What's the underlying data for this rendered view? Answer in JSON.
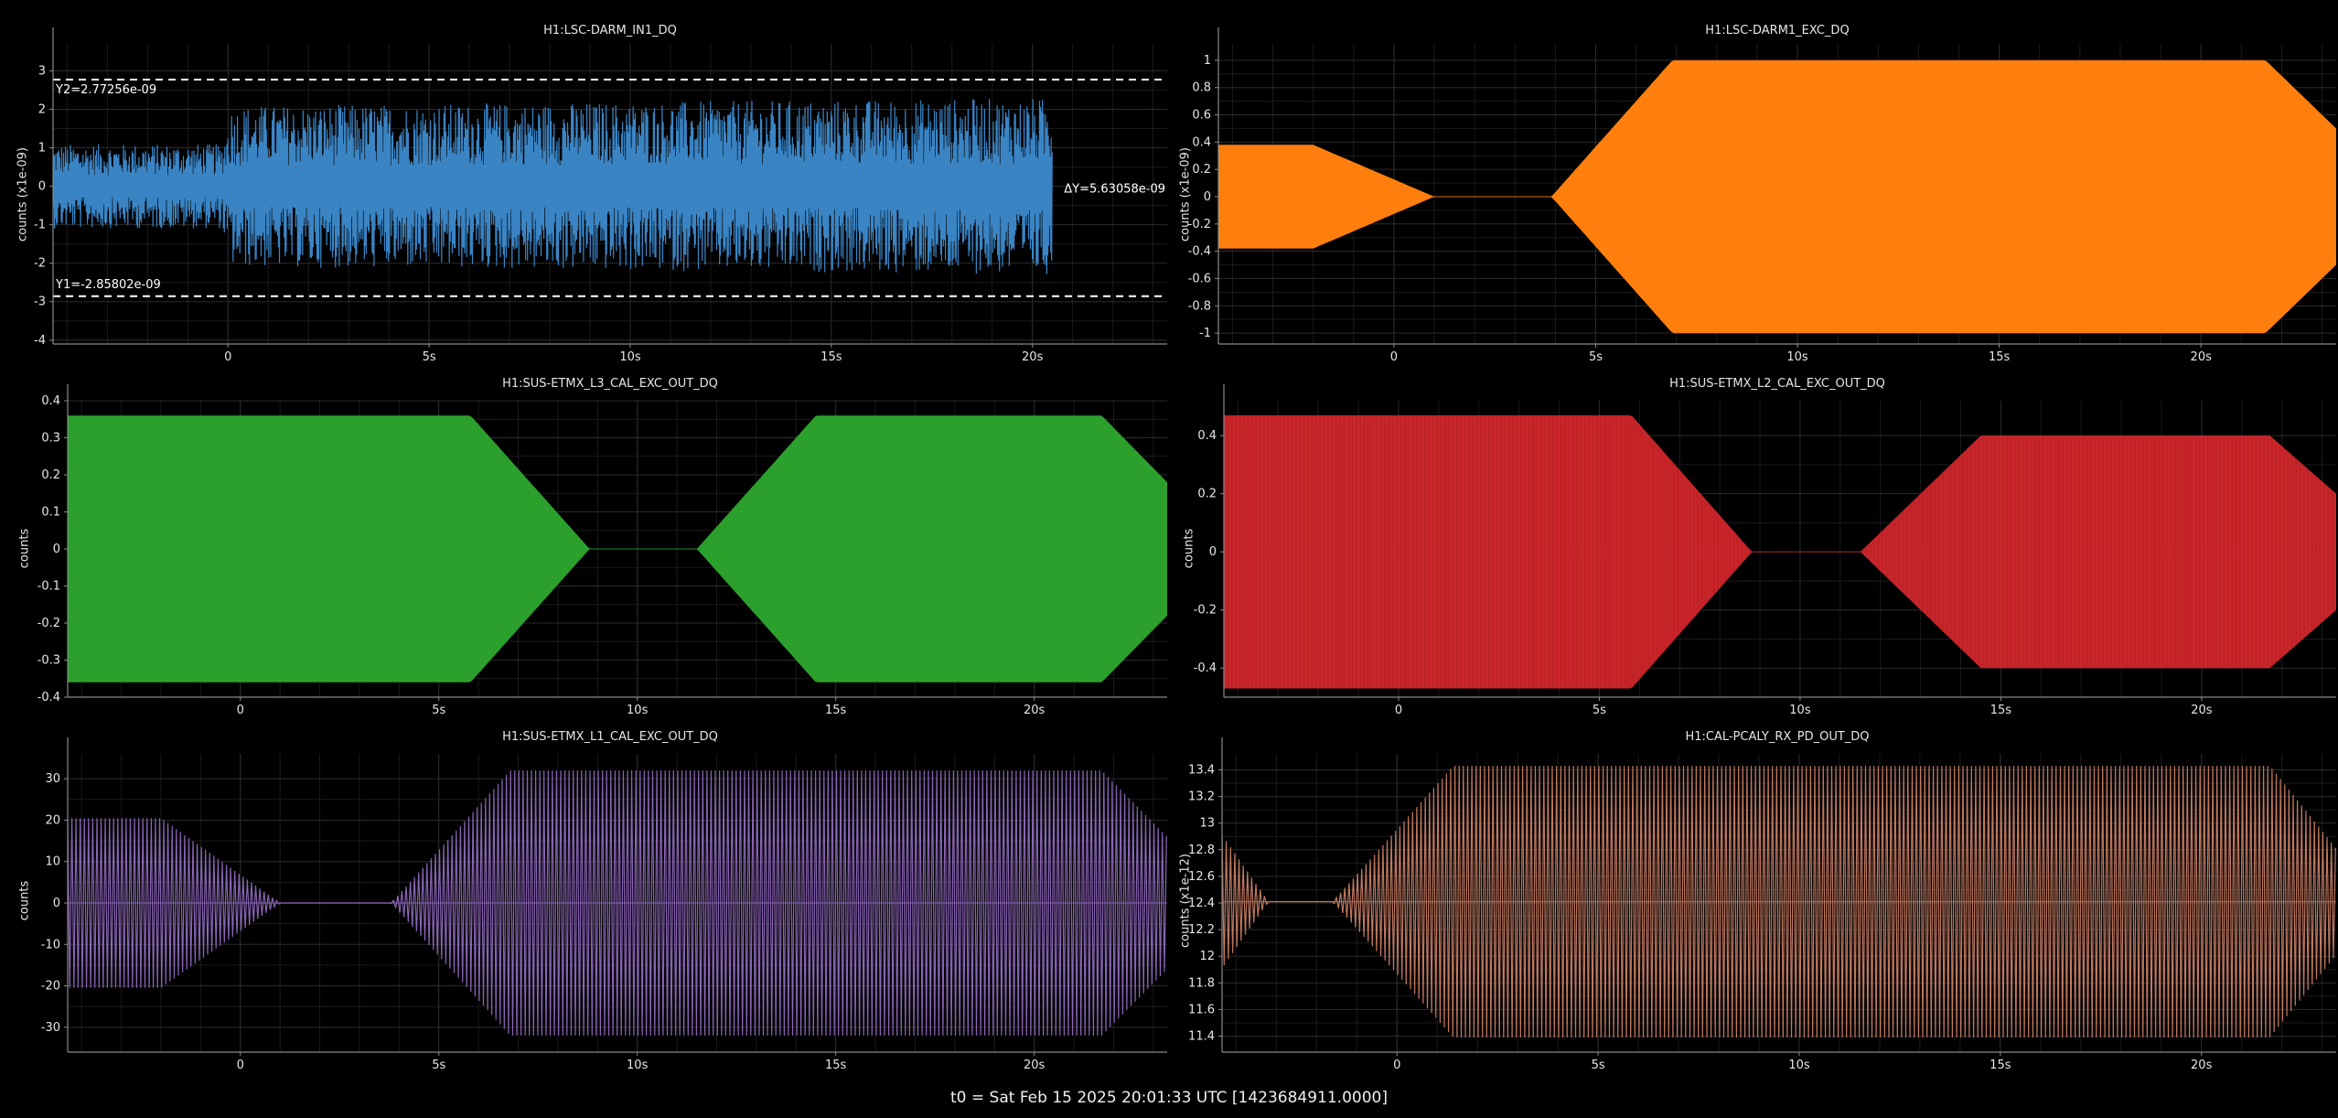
{
  "footer": "t0 = Sat Feb 15 2025 20:01:33 UTC [1423684911.0000]",
  "xaxis": {
    "range": [
      -4.35,
      23.35
    ],
    "ticks": [
      0,
      5,
      10,
      15,
      20
    ],
    "tick_labels": [
      "0",
      "5s",
      "10s",
      "15s",
      "20s"
    ]
  },
  "chart_data": [
    {
      "type": "line",
      "title": "H1:LSC-DARM_IN1_DQ",
      "ylabel": "counts (x1e-09)",
      "color": "#3a84c4",
      "ylim": [
        -4.1,
        3.7
      ],
      "yticks": [
        3,
        2,
        1,
        0,
        -1,
        -2,
        -3,
        -4
      ],
      "ytick_labels": [
        "3",
        "2",
        "1",
        "0",
        "-1",
        "-2",
        "-3",
        "-4"
      ],
      "signal": "noise",
      "envelope": {
        "t": [
          -4.35,
          -0.15,
          0.1,
          20.5
        ],
        "amp": [
          1.1,
          1.1,
          2.1,
          2.3
        ]
      },
      "data_end": 20.5,
      "cursors": [
        {
          "y": 2.77256,
          "label": "Y2=2.77256e-09"
        },
        {
          "y": -2.85802,
          "label": "Y1=-2.85802e-09"
        }
      ],
      "delta_label": "ΔY=5.63058e-09"
    },
    {
      "type": "area",
      "title": "H1:LSC-DARM1_EXC_DQ",
      "ylabel": "counts (x1e-09)",
      "color": "#ff7f0e",
      "ylim": [
        -1.08,
        1.12
      ],
      "yticks": [
        1,
        0.8,
        0.6,
        0.4,
        0.2,
        0,
        -0.2,
        -0.4,
        -0.6,
        -0.8,
        -1
      ],
      "ytick_labels": [
        "1",
        "0.8",
        "0.6",
        "0.4",
        "0.2",
        "0",
        "-0.2",
        "-0.4",
        "-0.6",
        "-0.8",
        "-1"
      ],
      "signal": "fill",
      "envelope": {
        "t": [
          -4.35,
          -2,
          1,
          3.9,
          6.9,
          21.6,
          23.35
        ],
        "amp": [
          0.38,
          0.38,
          0,
          0,
          1,
          1,
          0.5
        ]
      },
      "data_end": 23.35
    },
    {
      "type": "area",
      "title": "H1:SUS-ETMX_L3_CAL_EXC_OUT_DQ",
      "ylabel": "counts",
      "color": "#2ca02c",
      "ylim": [
        -0.4,
        0.4
      ],
      "yticks": [
        0.4,
        0.3,
        0.2,
        0.1,
        0,
        -0.1,
        -0.2,
        -0.3,
        -0.4
      ],
      "ytick_labels": [
        "0.4",
        "0.3",
        "0.2",
        "0.1",
        "0",
        "-0.1",
        "-0.2",
        "-0.3",
        "-0.4"
      ],
      "signal": "fill",
      "envelope": {
        "t": [
          -4.35,
          5.8,
          8.8,
          11.5,
          14.5,
          21.7,
          23.35
        ],
        "amp": [
          0.36,
          0.36,
          0,
          0,
          0.36,
          0.36,
          0.18
        ]
      },
      "data_end": 23.35
    },
    {
      "type": "area",
      "title": "H1:SUS-ETMX_L2_CAL_EXC_OUT_DQ",
      "ylabel": "counts",
      "color": "#c8252a",
      "ylim": [
        -0.5,
        0.52
      ],
      "yticks": [
        0.4,
        0.2,
        0,
        -0.2,
        -0.4
      ],
      "ytick_labels": [
        "0.4",
        "0.2",
        "0",
        "-0.2",
        "-0.4"
      ],
      "signal": "fill_hatched",
      "envelope": {
        "t": [
          -4.35,
          5.8,
          8.8,
          11.5,
          14.5,
          21.7,
          23.35
        ],
        "amp": [
          0.47,
          0.47,
          0,
          0,
          0.4,
          0.4,
          0.2
        ]
      },
      "data_end": 23.35
    },
    {
      "type": "line",
      "title": "H1:SUS-ETMX_L1_CAL_EXC_OUT_DQ",
      "ylabel": "counts",
      "color": "#8a64b5",
      "ylim": [
        -36,
        36
      ],
      "yticks": [
        30,
        20,
        10,
        0,
        -10,
        -20,
        -30
      ],
      "ytick_labels": [
        "30",
        "20",
        "10",
        "0",
        "-10",
        "-20",
        "-30"
      ],
      "signal": "oscillation",
      "cycles_per_s": 9.5,
      "envelope": {
        "t": [
          -4.35,
          -2,
          1,
          3.8,
          6.8,
          21.7,
          23.35
        ],
        "amp": [
          20.5,
          20.5,
          0,
          0,
          32,
          32,
          16
        ]
      },
      "data_end": 23.35
    },
    {
      "type": "line",
      "title": "H1:CAL-PCALY_RX_PD_OUT_DQ",
      "ylabel": "counts (x1e-12)",
      "color": "#c07860",
      "ylim": [
        11.28,
        13.52
      ],
      "yticks": [
        13.4,
        13.2,
        13,
        12.8,
        12.6,
        12.4,
        12.2,
        12,
        11.8,
        11.6,
        11.4
      ],
      "ytick_labels": [
        "13.4",
        "13.2",
        "13",
        "12.8",
        "12.6",
        "12.4",
        "12.2",
        "12",
        "11.8",
        "11.6",
        "11.4"
      ],
      "signal": "oscillation",
      "cycles_per_s": 9.5,
      "center": 12.41,
      "envelope": {
        "t": [
          -4.35,
          -3.2,
          -1.6,
          1.4,
          21.7,
          23.35
        ],
        "amp": [
          0.5,
          0,
          0,
          1.02,
          1.02,
          0.4
        ]
      },
      "data_end": 23.35
    }
  ]
}
